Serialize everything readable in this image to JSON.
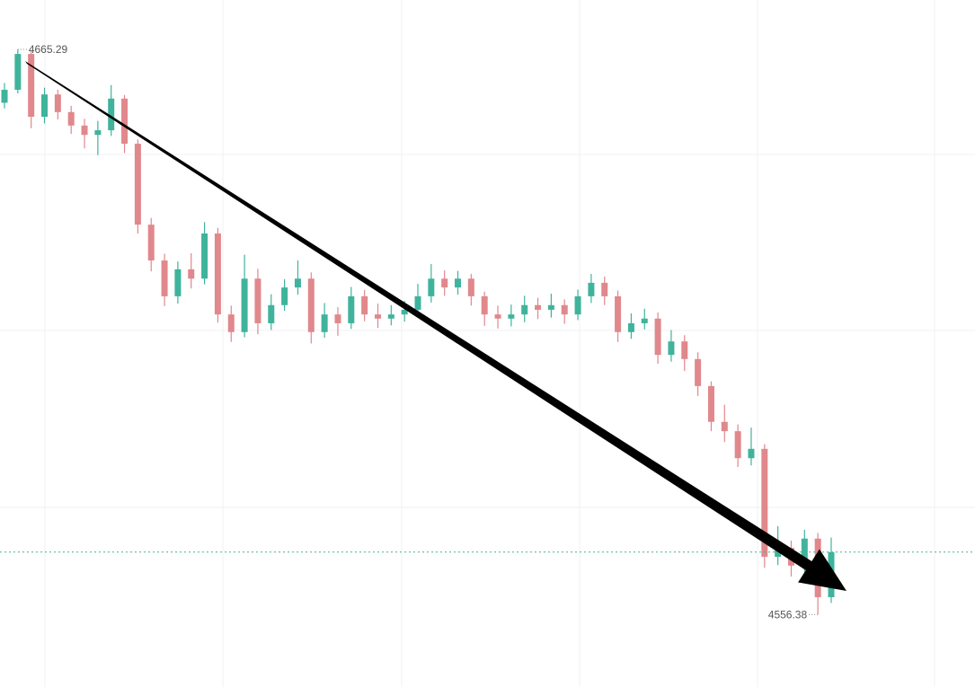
{
  "chart_data": {
    "type": "candlestick",
    "ylim": [
      4542.4,
      4674.8
    ],
    "up_color": "#3fb39c",
    "down_color": "#e0888c",
    "last_price_line": true,
    "open": [
      4655.0,
      4657.5,
      4664.4,
      4652.3,
      4656.6,
      4653.2,
      4650.6,
      4648.8,
      4649.7,
      4655.8,
      4647.1,
      4631.5,
      4624.6,
      4617.7,
      4622.9,
      4621.1,
      4629.8,
      4614.2,
      4610.8,
      4621.1,
      4612.5,
      4616.0,
      4619.4,
      4621.1,
      4610.8,
      4614.2,
      4612.5,
      4617.7,
      4614.2,
      4613.4,
      4614.2,
      4615.1,
      4617.7,
      4621.1,
      4619.4,
      4621.1,
      4617.7,
      4614.2,
      4613.4,
      4614.2,
      4616.0,
      4615.1,
      4616.0,
      4614.2,
      4617.7,
      4620.3,
      4617.7,
      4610.8,
      4612.5,
      4613.4,
      4606.4,
      4609.0,
      4605.6,
      4600.4,
      4593.5,
      4591.7,
      4586.5,
      4588.3,
      4567.5,
      4569.2,
      4565.8,
      4571.0,
      4559.7
    ],
    "high": [
      4658.8,
      4665.29,
      4665.0,
      4657.9,
      4657.5,
      4654.4,
      4651.9,
      4651.5,
      4658.4,
      4656.5,
      4647.9,
      4632.8,
      4625.9,
      4624.4,
      4626.0,
      4632.0,
      4630.9,
      4615.9,
      4625.7,
      4623.0,
      4618.1,
      4621.0,
      4624.6,
      4622.3,
      4616.4,
      4615.6,
      4619.5,
      4618.9,
      4616.3,
      4616.0,
      4616.8,
      4620.1,
      4623.9,
      4622.7,
      4622.6,
      4622.0,
      4618.6,
      4615.9,
      4616.1,
      4617.8,
      4617.4,
      4618.2,
      4617.1,
      4619.0,
      4622.0,
      4621.5,
      4618.8,
      4614.4,
      4615.3,
      4614.6,
      4611.2,
      4610.2,
      4606.9,
      4601.3,
      4596.8,
      4593.0,
      4592.4,
      4589.2,
      4573.4,
      4570.6,
      4572.7,
      4572.1,
      4571.2
    ],
    "low": [
      4653.9,
      4656.8,
      4650.1,
      4651.0,
      4651.8,
      4649.0,
      4646.2,
      4644.9,
      4648.6,
      4645.3,
      4629.8,
      4622.5,
      4615.8,
      4616.3,
      4619.2,
      4620.0,
      4612.6,
      4608.9,
      4609.8,
      4610.4,
      4611.2,
      4614.9,
      4618.0,
      4608.6,
      4609.7,
      4610.1,
      4611.4,
      4612.9,
      4611.6,
      4612.1,
      4612.8,
      4613.9,
      4616.5,
      4617.8,
      4618.0,
      4615.9,
      4612.0,
      4611.5,
      4611.9,
      4612.7,
      4613.3,
      4613.6,
      4612.4,
      4613.1,
      4616.4,
      4616.0,
      4608.9,
      4609.5,
      4611.3,
      4604.7,
      4605.1,
      4603.3,
      4598.5,
      4591.7,
      4589.6,
      4584.8,
      4585.1,
      4565.4,
      4565.9,
      4563.7,
      4564.5,
      4556.38,
      4558.6
    ],
    "close": [
      4657.5,
      4664.4,
      4652.3,
      4656.6,
      4653.2,
      4650.6,
      4648.8,
      4649.7,
      4655.8,
      4647.1,
      4631.5,
      4624.6,
      4617.7,
      4622.9,
      4621.1,
      4629.8,
      4614.2,
      4610.8,
      4621.1,
      4612.5,
      4616.0,
      4619.4,
      4621.1,
      4610.8,
      4614.2,
      4612.5,
      4617.7,
      4614.2,
      4613.4,
      4614.2,
      4615.1,
      4617.7,
      4621.1,
      4619.4,
      4621.1,
      4617.7,
      4614.2,
      4613.4,
      4614.2,
      4616.0,
      4615.1,
      4616.0,
      4614.2,
      4617.7,
      4620.3,
      4617.7,
      4610.8,
      4612.5,
      4613.4,
      4606.4,
      4609.0,
      4605.6,
      4600.4,
      4593.5,
      4591.7,
      4586.5,
      4588.3,
      4567.5,
      4569.2,
      4565.8,
      4571.0,
      4559.7,
      4568.4
    ]
  }
}
